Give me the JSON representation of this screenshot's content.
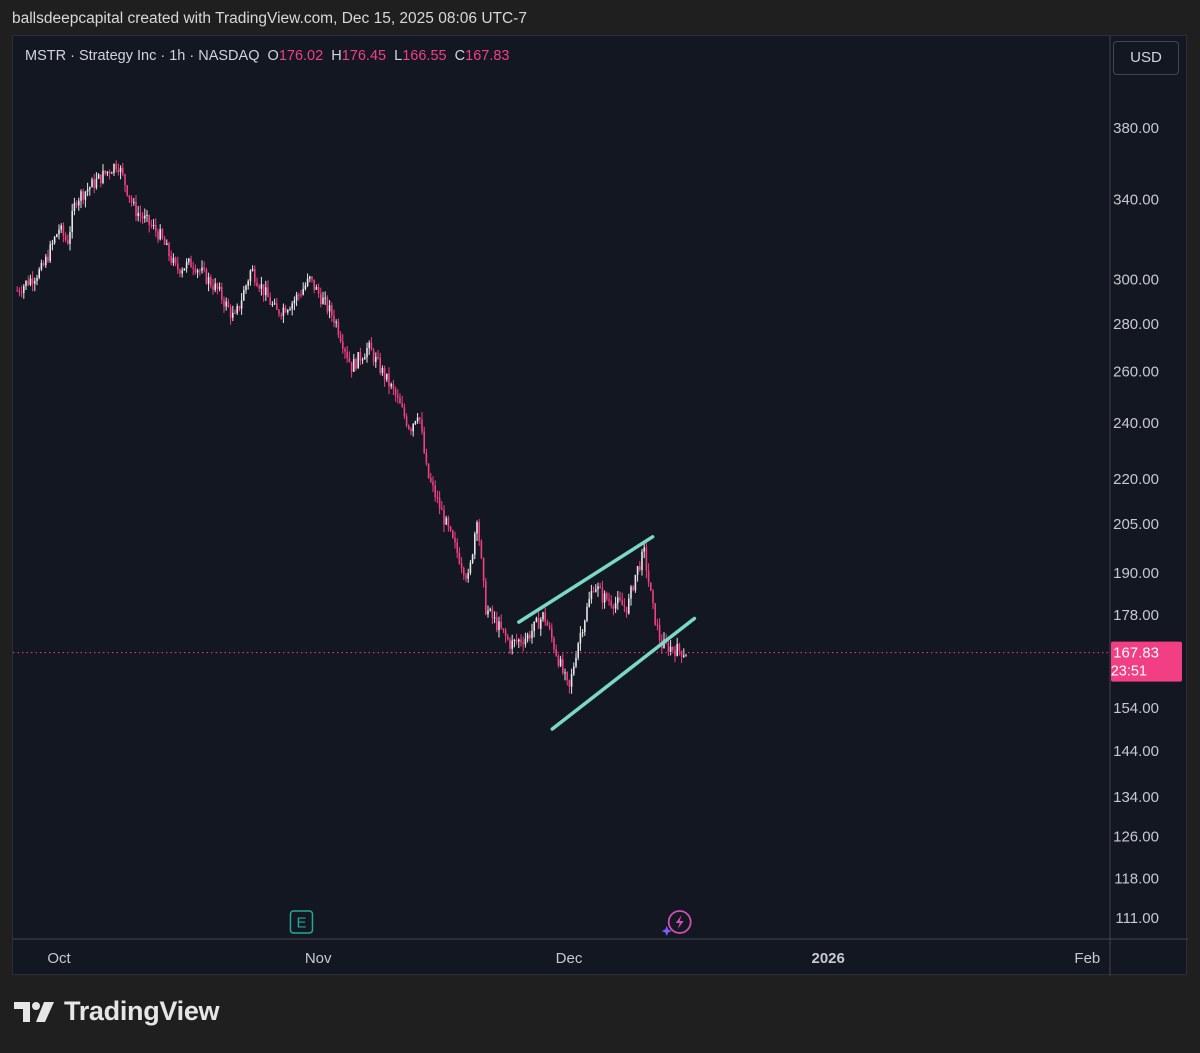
{
  "header": {
    "attribution": "ballsdeepcapital created with TradingView.com, Dec 15, 2025 08:06 UTC-7"
  },
  "legend": {
    "symbol": "MSTR · Strategy Inc · 1h · NASDAQ",
    "open_label": "O",
    "open": "176.02",
    "high_label": "H",
    "high": "176.45",
    "low_label": "L",
    "low": "166.55",
    "close_label": "C",
    "close": "167.83"
  },
  "currency_button": "USD",
  "price_badge": {
    "price": "167.83",
    "countdown": "23:51"
  },
  "footer": {
    "brand": "TradingView"
  },
  "colors": {
    "background": "#131722",
    "candle": "#f23f84",
    "candle_up": "#e6e6e6",
    "channel": "#7ad9c6",
    "price_line": "#f23f84",
    "axis_text": "#c7c9d0"
  },
  "event_icons": [
    "earnings-icon",
    "dividend-lightning-icon"
  ],
  "chart_data": {
    "type": "candlestick",
    "title": "",
    "xlabel": "",
    "ylabel": "",
    "y_scale": "log",
    "ylim": [
      107,
      420
    ],
    "x_ticks": [
      "Oct",
      "Nov",
      "Dec",
      "2026",
      "Feb"
    ],
    "y_ticks": [
      380.0,
      340.0,
      300.0,
      280.0,
      260.0,
      240.0,
      220.0,
      205.0,
      190.0,
      178.0,
      154.0,
      144.0,
      134.0,
      126.0,
      118.0,
      111.0
    ],
    "y_tick_labels": [
      "380.00",
      "340.00",
      "300.00",
      "280.00",
      "260.00",
      "240.00",
      "220.00",
      "205.00",
      "190.00",
      "178.00",
      "154.00",
      "144.00",
      "134.00",
      "126.00",
      "118.00",
      "111.00"
    ],
    "last_price": 167.83,
    "price_path": [
      [
        "2025-09-26",
        295
      ],
      [
        "2025-09-29",
        305
      ],
      [
        "2025-10-01",
        325
      ],
      [
        "2025-10-02",
        318
      ],
      [
        "2025-10-03",
        340
      ],
      [
        "2025-10-06",
        352
      ],
      [
        "2025-10-08",
        360
      ],
      [
        "2025-10-10",
        335
      ],
      [
        "2025-10-13",
        322
      ],
      [
        "2025-10-15",
        305
      ],
      [
        "2025-10-17",
        308
      ],
      [
        "2025-10-20",
        295
      ],
      [
        "2025-10-22",
        282
      ],
      [
        "2025-10-24",
        305
      ],
      [
        "2025-10-27",
        285
      ],
      [
        "2025-10-29",
        290
      ],
      [
        "2025-10-31",
        300
      ],
      [
        "2025-11-03",
        282
      ],
      [
        "2025-11-05",
        262
      ],
      [
        "2025-11-07",
        270
      ],
      [
        "2025-11-10",
        252
      ],
      [
        "2025-11-12",
        238
      ],
      [
        "2025-11-13",
        245
      ],
      [
        "2025-11-14",
        222
      ],
      [
        "2025-11-17",
        200
      ],
      [
        "2025-11-19",
        188
      ],
      [
        "2025-11-20",
        208
      ],
      [
        "2025-11-21",
        180
      ],
      [
        "2025-11-24",
        170
      ],
      [
        "2025-11-26",
        172
      ],
      [
        "2025-11-28",
        178
      ],
      [
        "2025-12-01",
        158
      ],
      [
        "2025-12-02",
        170
      ],
      [
        "2025-12-04",
        187
      ],
      [
        "2025-12-05",
        183
      ],
      [
        "2025-12-08",
        180
      ],
      [
        "2025-12-09",
        190
      ],
      [
        "2025-12-10",
        196
      ],
      [
        "2025-12-11",
        180
      ],
      [
        "2025-12-12",
        170
      ],
      [
        "2025-12-15",
        167.83
      ]
    ],
    "annotations": [
      {
        "type": "trendline",
        "from": [
          "2025-11-25",
          176
        ],
        "to": [
          "2025-12-11",
          201
        ]
      },
      {
        "type": "trendline",
        "from": [
          "2025-11-29",
          149
        ],
        "to": [
          "2025-12-16",
          177
        ]
      }
    ],
    "events": [
      {
        "type": "earnings",
        "date": "2025-10-30"
      },
      {
        "type": "dividend",
        "date": "2025-12-14"
      }
    ]
  }
}
